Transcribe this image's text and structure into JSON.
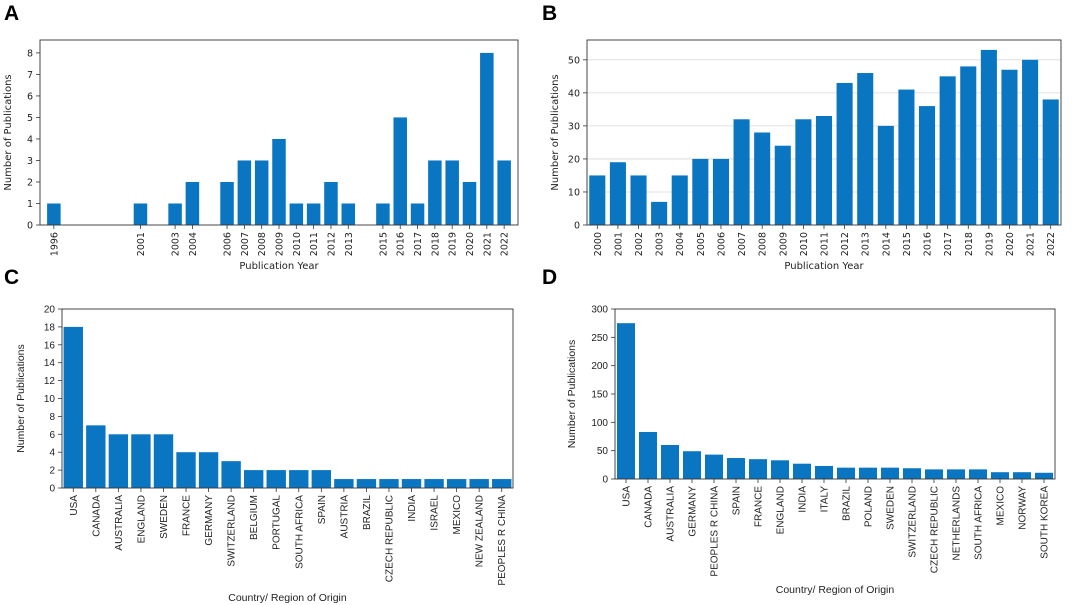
{
  "panels": {
    "a": "A",
    "b": "B",
    "c": "C",
    "d": "D"
  },
  "colors": {
    "bar": "#0a76c2",
    "axis": "#333333"
  },
  "chart_data": [
    {
      "id": "A",
      "type": "bar",
      "xlabel": "Publication Year",
      "ylabel": "Number of Publications",
      "ylim": [
        0,
        8.6
      ],
      "yticks": [
        0,
        1,
        2,
        3,
        4,
        5,
        6,
        7,
        8
      ],
      "xlim": [
        1995.2,
        2022.8
      ],
      "x": [
        1996,
        2001,
        2003,
        2004,
        2006,
        2007,
        2008,
        2009,
        2010,
        2011,
        2012,
        2013,
        2015,
        2016,
        2017,
        2018,
        2019,
        2020,
        2021,
        2022
      ],
      "values": [
        1,
        1,
        1,
        2,
        2,
        3,
        3,
        4,
        1,
        1,
        2,
        1,
        1,
        5,
        1,
        3,
        3,
        2,
        8,
        3
      ]
    },
    {
      "id": "B",
      "type": "bar",
      "xlabel": "Publication Year",
      "ylabel": "Number of Publications",
      "ylim": [
        0,
        56
      ],
      "yticks": [
        0,
        10,
        20,
        30,
        40,
        50
      ],
      "categories": [
        "2000",
        "2001",
        "2002",
        "2003",
        "2004",
        "2005",
        "2006",
        "2007",
        "2008",
        "2009",
        "2010",
        "2011",
        "2012",
        "2013",
        "2014",
        "2015",
        "2016",
        "2017",
        "2018",
        "2019",
        "2020",
        "2021",
        "2022"
      ],
      "values": [
        15,
        19,
        15,
        7,
        15,
        20,
        20,
        32,
        28,
        24,
        32,
        33,
        43,
        46,
        30,
        41,
        36,
        45,
        48,
        53,
        47,
        50,
        38
      ]
    },
    {
      "id": "C",
      "type": "bar",
      "xlabel": "Country/ Region of Origin",
      "ylabel": "Number of Publications",
      "ylim": [
        0,
        20
      ],
      "yticks": [
        0,
        2,
        4,
        6,
        8,
        10,
        12,
        14,
        16,
        18,
        20
      ],
      "categories": [
        "USA",
        "CANADA",
        "AUSTRALIA",
        "ENGLAND",
        "SWEDEN",
        "FRANCE",
        "GERMANY",
        "SWITZERLAND",
        "BELGIUM",
        "PORTUGAL",
        "SOUTH AFRICA",
        "SPAIN",
        "AUSTRIA",
        "BRAZIL",
        "CZECH REPUBLIC",
        "INDIA",
        "ISRAEL",
        "MEXICO",
        "NEW ZEALAND",
        "PEOPLES R CHINA"
      ],
      "values": [
        18,
        7,
        6,
        6,
        6,
        4,
        4,
        3,
        2,
        2,
        2,
        2,
        1,
        1,
        1,
        1,
        1,
        1,
        1,
        1
      ]
    },
    {
      "id": "D",
      "type": "bar",
      "xlabel": "Country/ Region of Origin",
      "ylabel": "Number of Publications",
      "ylim": [
        0,
        300
      ],
      "yticks": [
        0,
        50,
        100,
        150,
        200,
        250,
        300
      ],
      "categories": [
        "USA",
        "CANADA",
        "AUSTRALIA",
        "GERMANY",
        "PEOPLES R CHINA",
        "SPAIN",
        "FRANCE",
        "ENGLAND",
        "INDIA",
        "ITALY",
        "BRAZIL",
        "POLAND",
        "SWEDEN",
        "SWITZERLAND",
        "CZECH REPUBLIC",
        "NETHERLANDS",
        "SOUTH AFRICA",
        "MEXICO",
        "NORWAY",
        "SOUTH KOREA"
      ],
      "values": [
        275,
        83,
        60,
        49,
        43,
        37,
        35,
        33,
        27,
        23,
        20,
        20,
        20,
        19,
        17,
        17,
        17,
        12,
        12,
        11
      ]
    }
  ]
}
